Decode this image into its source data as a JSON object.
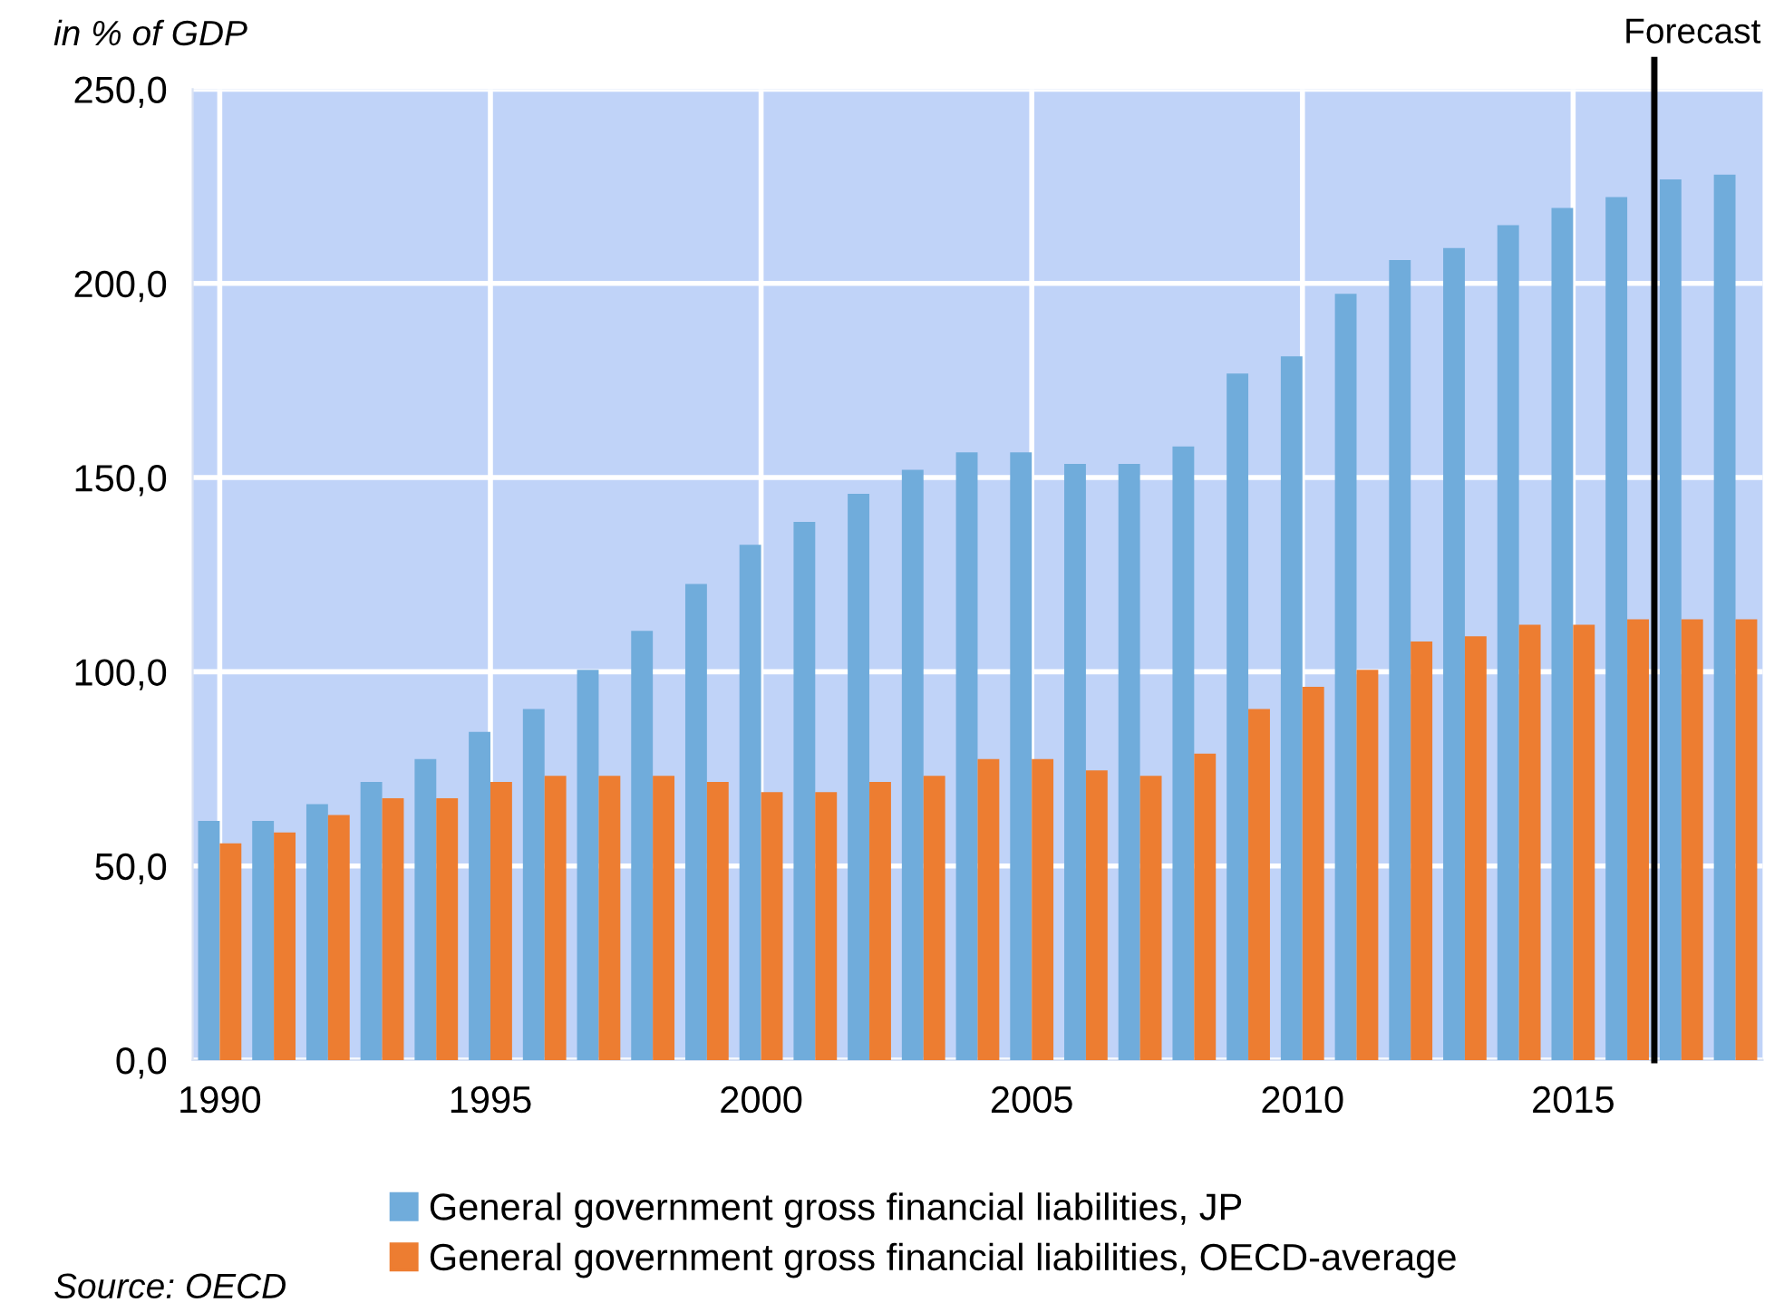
{
  "chart_data": {
    "type": "bar",
    "ylabel": "in % of GDP",
    "x": [
      1990,
      1991,
      1992,
      1993,
      1994,
      1995,
      1996,
      1997,
      1998,
      1999,
      2000,
      2001,
      2002,
      2003,
      2004,
      2005,
      2006,
      2007,
      2008,
      2009,
      2010,
      2011,
      2012,
      2013,
      2014,
      2015,
      2016,
      2017,
      2018
    ],
    "series": [
      {
        "name": "General government gross financial liabilities, JP",
        "color": "#70acdb",
        "values": [
          61.6,
          61.6,
          65.9,
          71.6,
          77.5,
          84.5,
          90.4,
          100.5,
          110.5,
          122.6,
          132.7,
          138.6,
          145.8,
          152,
          156.5,
          156.5,
          153.5,
          153.5,
          158,
          176.8,
          181.2,
          197.3,
          206,
          209.1,
          215,
          219.4,
          222.2,
          226.8,
          228
        ]
      },
      {
        "name": "General government gross financial liabilities, OECD-average",
        "color": "#ed7d31",
        "values": [
          55.8,
          58.6,
          63.1,
          67.4,
          67.4,
          71.6,
          73.2,
          73.2,
          73.2,
          71.6,
          69,
          69,
          71.6,
          73.2,
          77.5,
          77.5,
          74.6,
          73.2,
          78.9,
          90.4,
          96.1,
          100.5,
          107.8,
          109.1,
          112.1,
          112.1,
          113.5,
          113.5,
          113.5
        ]
      }
    ],
    "xlim": [
      1989.5,
      2018.5
    ],
    "xticks": [
      1990,
      1995,
      2000,
      2005,
      2010,
      2015
    ],
    "ylim": [
      0,
      250
    ],
    "yticks": [
      {
        "value": 0,
        "label": "0,0"
      },
      {
        "value": 50,
        "label": "50,0"
      },
      {
        "value": 100,
        "label": "100,0"
      },
      {
        "value": 150,
        "label": "150,0"
      },
      {
        "value": 200,
        "label": "200,0"
      },
      {
        "value": 250,
        "label": "250,0"
      }
    ],
    "ref_lines": [
      {
        "axis": "x",
        "value": 2016.5,
        "label": "Forecast",
        "color": "#000000"
      }
    ],
    "annotations": [
      "Source: OECD"
    ],
    "grid": true,
    "legend": "bottom"
  }
}
